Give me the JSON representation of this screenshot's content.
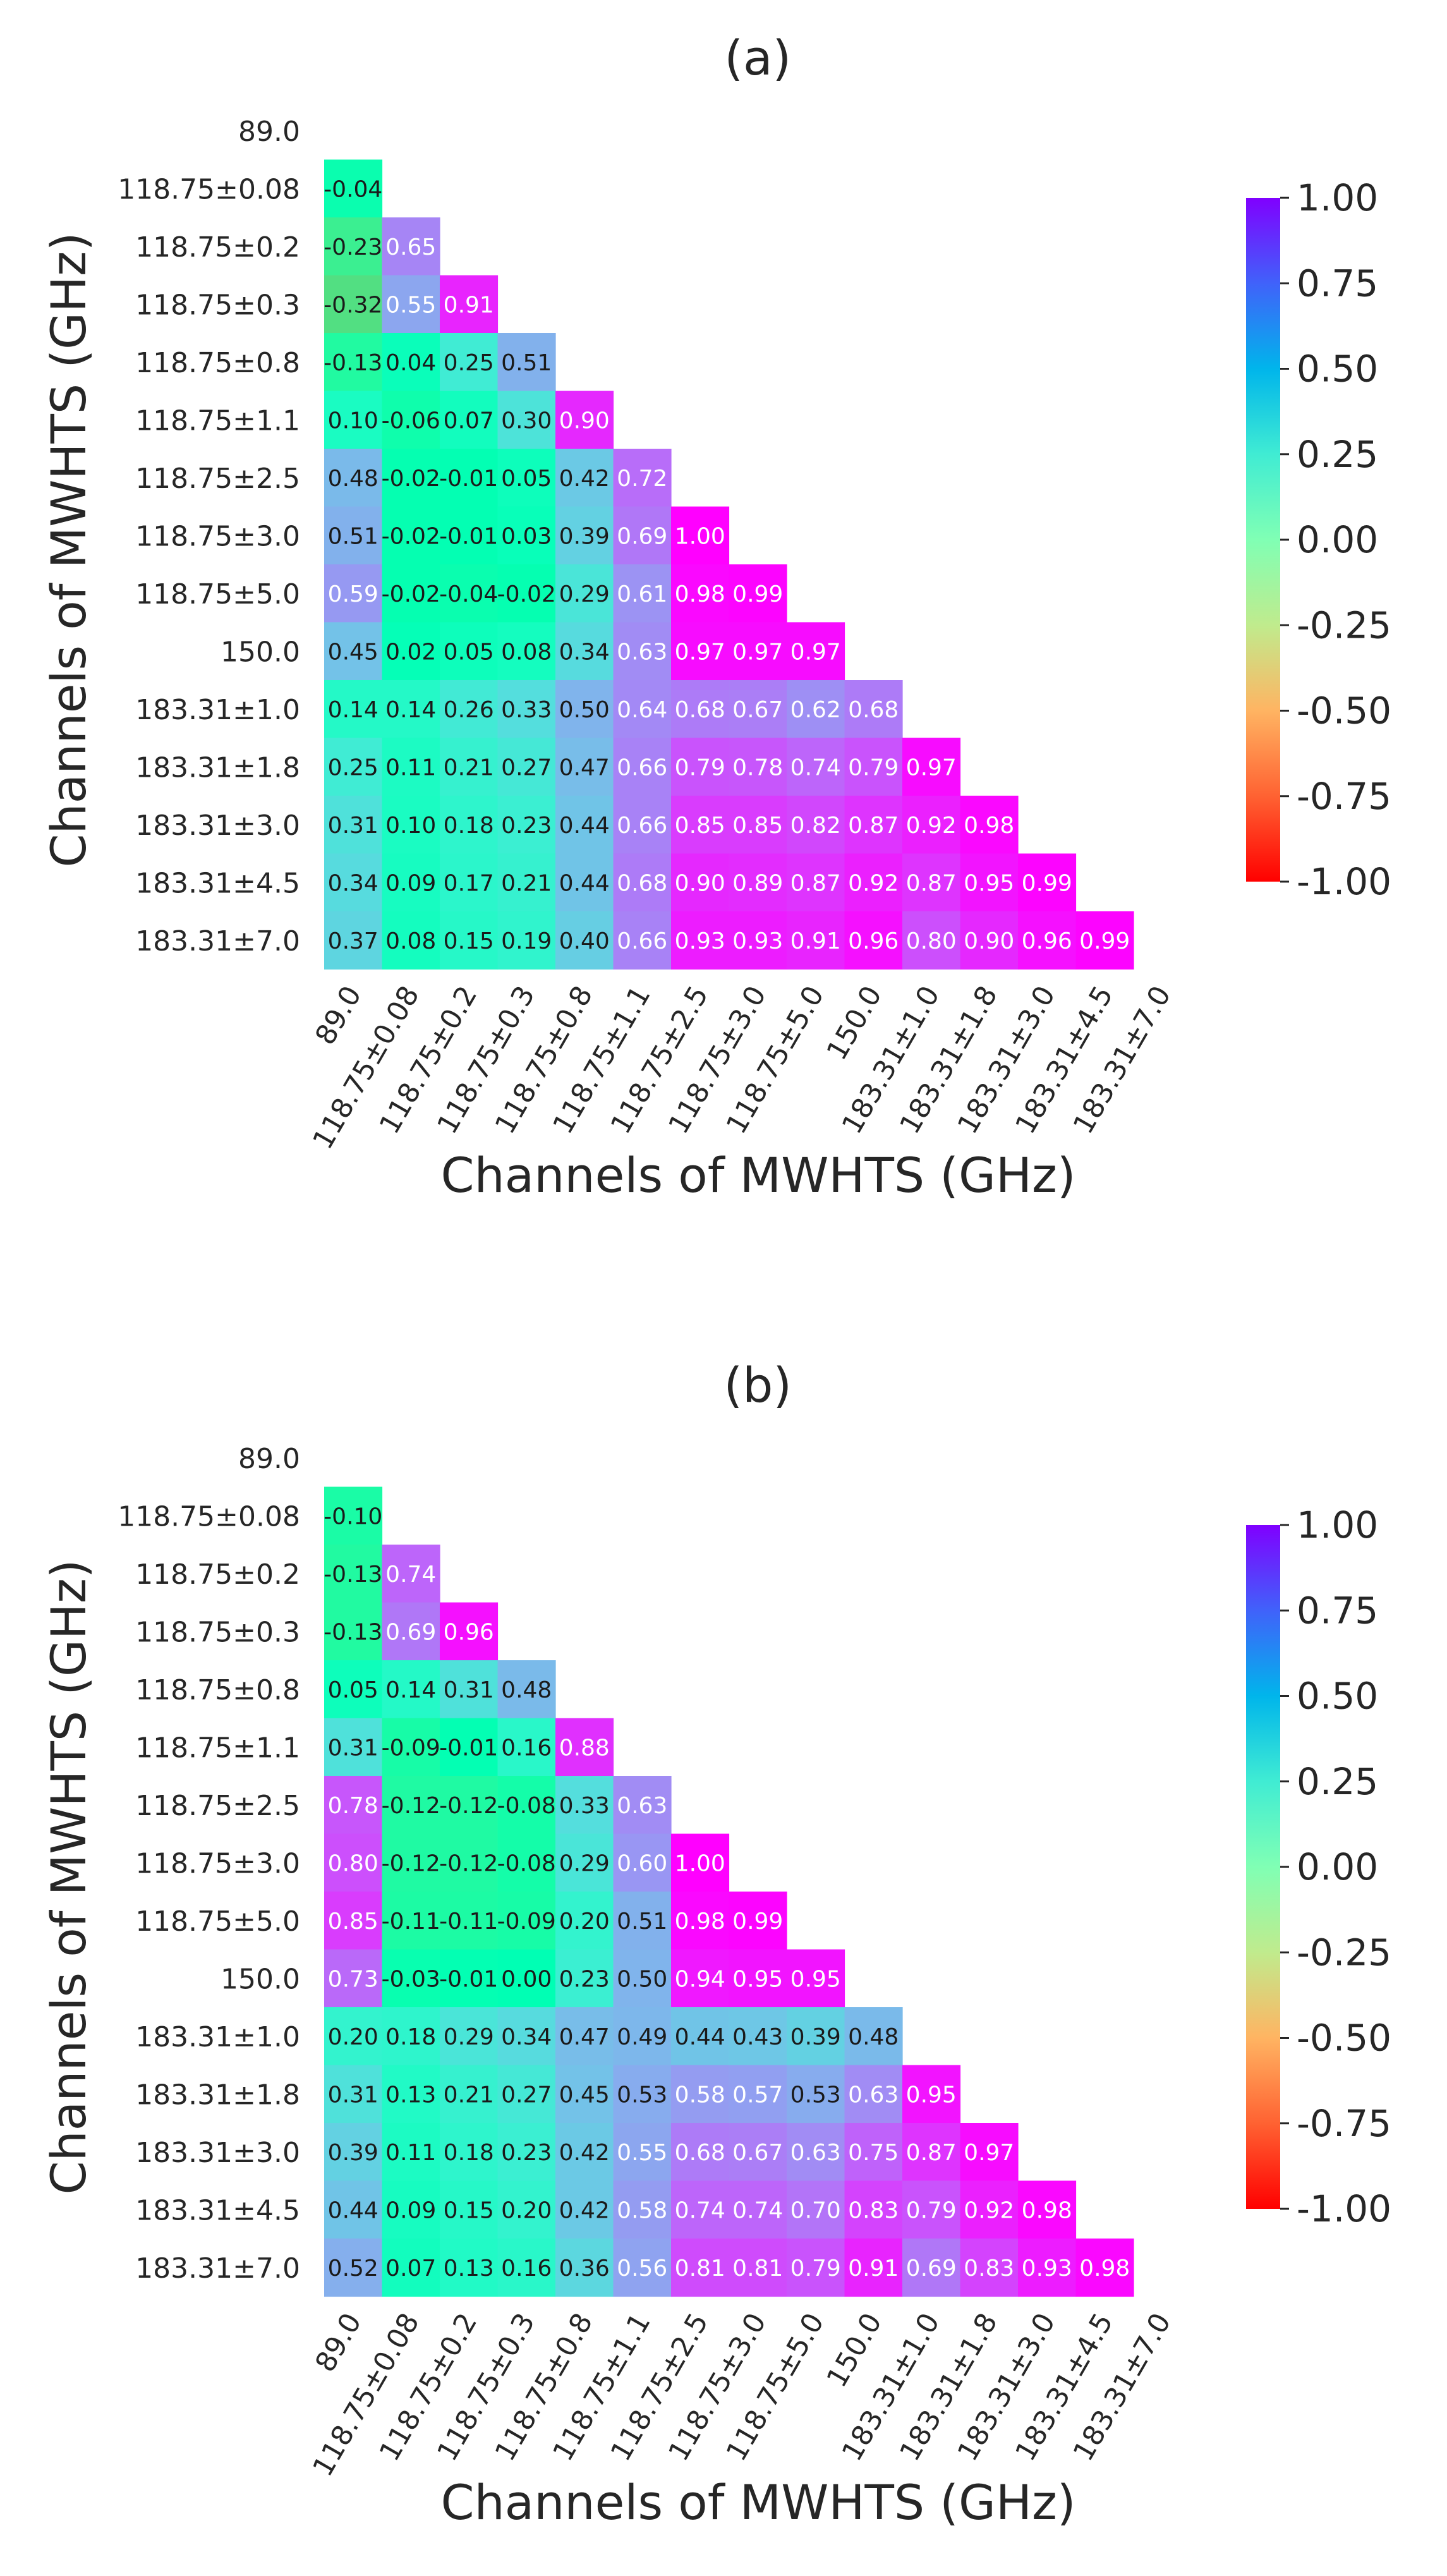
{
  "chart_data": [
    {
      "type": "heatmap",
      "title": "(a)",
      "xlabel": "Channels of MWHTS (GHz)",
      "ylabel": "Channels of MWHTS (GHz)",
      "channels": [
        "89.0",
        "118.75±0.08",
        "118.75±0.2",
        "118.75±0.3",
        "118.75±0.8",
        "118.75±1.1",
        "118.75±2.5",
        "118.75±3.0",
        "118.75±5.0",
        "150.0",
        "183.31±1.0",
        "183.31±1.8",
        "183.31±3.0",
        "183.31±4.5",
        "183.31±7.0"
      ],
      "value_labels": [
        [],
        [
          "-0.04"
        ],
        [
          "-0.23",
          "0.65"
        ],
        [
          "-0.32",
          "0.55",
          "0.91"
        ],
        [
          "-0.13",
          "0.04",
          "0.25",
          "0.51"
        ],
        [
          "0.10",
          "-0.06",
          "0.07",
          "0.30",
          "0.90"
        ],
        [
          "0.48",
          "-0.02",
          "-0.01",
          "0.05",
          "0.42",
          "0.72"
        ],
        [
          "0.51",
          "-0.02",
          "-0.01",
          "0.03",
          "0.39",
          "0.69",
          "1.00"
        ],
        [
          "0.59",
          "-0.02",
          "-0.04",
          "-0.02",
          "0.29",
          "0.61",
          "0.98",
          "0.99"
        ],
        [
          "0.45",
          "0.02",
          "0.05",
          "0.08",
          "0.34",
          "0.63",
          "0.97",
          "0.97",
          "0.97"
        ],
        [
          "0.14",
          "0.14",
          "0.26",
          "0.33",
          "0.50",
          "0.64",
          "0.68",
          "0.67",
          "0.62",
          "0.68"
        ],
        [
          "0.25",
          "0.11",
          "0.21",
          "0.27",
          "0.47",
          "0.66",
          "0.79",
          "0.78",
          "0.74",
          "0.79",
          "0.97"
        ],
        [
          "0.31",
          "0.10",
          "0.18",
          "0.23",
          "0.44",
          "0.66",
          "0.85",
          "0.85",
          "0.82",
          "0.87",
          "0.92",
          "0.98"
        ],
        [
          "0.34",
          "0.09",
          "0.17",
          "0.21",
          "0.44",
          "0.68",
          "0.90",
          "0.89",
          "0.87",
          "0.92",
          "0.87",
          "0.95",
          "0.99"
        ],
        [
          "0.37",
          "0.08",
          "0.15",
          "0.19",
          "0.40",
          "0.66",
          "0.93",
          "0.93",
          "0.91",
          "0.96",
          "0.80",
          "0.90",
          "0.96",
          "0.99"
        ]
      ],
      "colorbar": {
        "range": [
          -1.0,
          1.0
        ],
        "ticks": [
          "1.00",
          "0.75",
          "0.50",
          "0.25",
          "0.00",
          "-0.25",
          "-0.50",
          "-0.75",
          "-1.00"
        ],
        "colormap": "rainbow"
      }
    },
    {
      "type": "heatmap",
      "title": "(b)",
      "xlabel": "Channels of MWHTS (GHz)",
      "ylabel": "Channels of MWHTS (GHz)",
      "channels": [
        "89.0",
        "118.75±0.08",
        "118.75±0.2",
        "118.75±0.3",
        "118.75±0.8",
        "118.75±1.1",
        "118.75±2.5",
        "118.75±3.0",
        "118.75±5.0",
        "150.0",
        "183.31±1.0",
        "183.31±1.8",
        "183.31±3.0",
        "183.31±4.5",
        "183.31±7.0"
      ],
      "value_labels": [
        [],
        [
          "-0.10"
        ],
        [
          "-0.13",
          "0.74"
        ],
        [
          "-0.13",
          "0.69",
          "0.96"
        ],
        [
          "0.05",
          "0.14",
          "0.31",
          "0.48"
        ],
        [
          "0.31",
          "-0.09",
          "-0.01",
          "0.16",
          "0.88"
        ],
        [
          "0.78",
          "-0.12",
          "-0.12",
          "-0.08",
          "0.33",
          "0.63"
        ],
        [
          "0.80",
          "-0.12",
          "-0.12",
          "-0.08",
          "0.29",
          "0.60",
          "1.00"
        ],
        [
          "0.85",
          "-0.11",
          "-0.11",
          "-0.09",
          "0.20",
          "0.51",
          "0.98",
          "0.99"
        ],
        [
          "0.73",
          "-0.03",
          "-0.01",
          "0.00",
          "0.23",
          "0.50",
          "0.94",
          "0.95",
          "0.95"
        ],
        [
          "0.20",
          "0.18",
          "0.29",
          "0.34",
          "0.47",
          "0.49",
          "0.44",
          "0.43",
          "0.39",
          "0.48"
        ],
        [
          "0.31",
          "0.13",
          "0.21",
          "0.27",
          "0.45",
          "0.53",
          "0.58",
          "0.57",
          "0.53",
          "0.63",
          "0.95"
        ],
        [
          "0.39",
          "0.11",
          "0.18",
          "0.23",
          "0.42",
          "0.55",
          "0.68",
          "0.67",
          "0.63",
          "0.75",
          "0.87",
          "0.97"
        ],
        [
          "0.44",
          "0.09",
          "0.15",
          "0.20",
          "0.42",
          "0.58",
          "0.74",
          "0.74",
          "0.70",
          "0.83",
          "0.79",
          "0.92",
          "0.98"
        ],
        [
          "0.52",
          "0.07",
          "0.13",
          "0.16",
          "0.36",
          "0.56",
          "0.81",
          "0.81",
          "0.79",
          "0.91",
          "0.69",
          "0.83",
          "0.93",
          "0.98"
        ]
      ],
      "colorbar": {
        "range": [
          -1.0,
          1.0
        ],
        "ticks": [
          "1.00",
          "0.75",
          "0.50",
          "0.25",
          "0.00",
          "-0.25",
          "-0.50",
          "-0.75",
          "-1.00"
        ],
        "colormap": "rainbow"
      }
    }
  ]
}
